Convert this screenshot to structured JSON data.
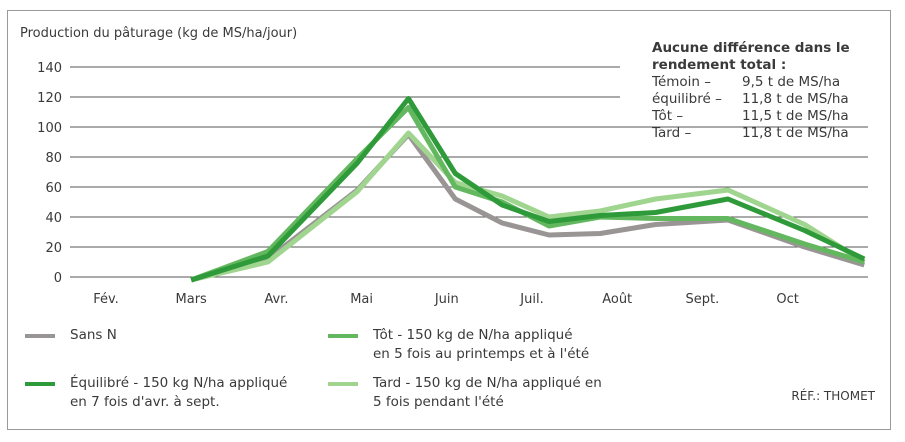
{
  "chart_data": {
    "type": "line",
    "ylabel": "Production du pâturage (kg de MS/ha/jour)",
    "ylim": [
      0,
      140
    ],
    "yticks": [
      0,
      20,
      40,
      60,
      80,
      100,
      120,
      140
    ],
    "categories": [
      "Fév.",
      "Mars",
      "Avr.",
      "Mai",
      "Juin",
      "Juil.",
      "Août",
      "Sept.",
      "Oct"
    ],
    "grid": true,
    "series": [
      {
        "name": "Sans N",
        "color": "#9a9595",
        "x": [
          1,
          1.9,
          2.95,
          3.55,
          4.1,
          4.65,
          5.2,
          5.8,
          6.45,
          7.3,
          8.2,
          8.9
        ],
        "y": [
          -2,
          12,
          58,
          95,
          52,
          36,
          28,
          29,
          35,
          38,
          20,
          8
        ]
      },
      {
        "name": "Tard - 150 kg de N/ha appliqué en 5 fois pendant l'été",
        "color": "#9fd58f",
        "x": [
          1,
          1.9,
          2.95,
          3.55,
          4.1,
          4.65,
          5.2,
          5.8,
          6.45,
          7.3,
          8.2,
          8.9
        ],
        "y": [
          -2,
          10,
          57,
          96,
          63,
          54,
          40,
          44,
          52,
          58,
          35,
          10
        ]
      },
      {
        "name": "Tôt - 150 kg de N/ha appliqué en 5 fois au printemps et à l'été",
        "color": "#63b85f",
        "x": [
          1,
          1.9,
          2.95,
          3.55,
          4.1,
          4.65,
          5.2,
          5.8,
          6.45,
          7.3,
          8.2,
          8.9
        ],
        "y": [
          -2,
          17,
          79,
          113,
          60,
          50,
          34,
          40,
          39,
          39,
          22,
          10
        ]
      },
      {
        "name": "Équilibré - 150 kg N/ha appliqué en 7 fois d'avr. à sept.",
        "color": "#2f9a3a",
        "x": [
          1,
          1.9,
          2.95,
          3.55,
          4.1,
          4.65,
          5.2,
          5.8,
          6.45,
          7.3,
          8.2,
          8.9
        ],
        "y": [
          -2,
          14,
          76,
          119,
          69,
          48,
          37,
          41,
          43,
          52,
          31,
          12
        ]
      }
    ]
  },
  "legend": [
    {
      "key": "sans",
      "color": "#9a9595",
      "lines": [
        "Sans N"
      ]
    },
    {
      "key": "equilibre",
      "color": "#2f9a3a",
      "lines": [
        "Équilibré - 150 kg N/ha appliqué",
        "en 7 fois d'avr. à sept."
      ]
    },
    {
      "key": "tot",
      "color": "#63b85f",
      "lines": [
        "Tôt - 150 kg de N/ha appliqué",
        "en 5 fois au printemps et à l'été"
      ]
    },
    {
      "key": "tard",
      "color": "#9fd58f",
      "lines": [
        "Tard - 150 kg de N/ha appliqué en",
        "5 fois pendant l'été"
      ]
    }
  ],
  "note": {
    "title": "Aucune différence dans le rendement total :",
    "rows": [
      {
        "label": "Témoin –",
        "value": "9,5 t de MS/ha"
      },
      {
        "label": "équilibré –",
        "value": "11,8 t de MS/ha"
      },
      {
        "label": "Tôt –",
        "value": "11,5 t de MS/ha"
      },
      {
        "label": "Tard –",
        "value": "11,8 t de MS/ha"
      }
    ]
  },
  "reference": "RÉF.: THOMET"
}
